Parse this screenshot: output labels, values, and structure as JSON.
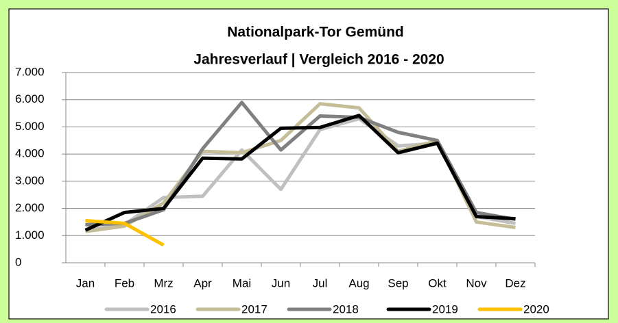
{
  "chart_data": {
    "type": "line",
    "title": [
      "Nationalpark-Tor Gemünd",
      "Jahresverlauf | Vergleich 2016 - 2020"
    ],
    "categories": [
      "Jan",
      "Feb",
      "Mrz",
      "Apr",
      "Mai",
      "Jun",
      "Jul",
      "Aug",
      "Sep",
      "Okt",
      "Nov",
      "Dez"
    ],
    "series": [
      {
        "name": "2016",
        "color": "#c0c0c0",
        "values": [
          1200,
          1400,
          2400,
          2450,
          4150,
          2700,
          4900,
          5300,
          4300,
          4400,
          1700,
          1450
        ]
      },
      {
        "name": "2017",
        "color": "#c4bd97",
        "values": [
          1150,
          1350,
          2200,
          4100,
          4050,
          4500,
          5850,
          5700,
          4100,
          4500,
          1500,
          1300
        ]
      },
      {
        "name": "2018",
        "color": "#808080",
        "values": [
          1400,
          1450,
          1950,
          4200,
          5900,
          4150,
          5400,
          5350,
          4800,
          4500,
          1850,
          1600
        ]
      },
      {
        "name": "2019",
        "color": "#000000",
        "values": [
          1200,
          1850,
          2000,
          3850,
          3820,
          4950,
          4980,
          5420,
          4050,
          4400,
          1700,
          1620
        ]
      },
      {
        "name": "2020",
        "color": "#ffc000",
        "values": [
          1550,
          1450,
          650,
          null,
          null,
          null,
          null,
          null,
          null,
          null,
          null,
          null
        ]
      }
    ],
    "ylim": [
      0,
      7000
    ],
    "yticks": [
      0,
      {
        "value": 1000,
        "label": "1.000"
      },
      {
        "value": 2000,
        "label": "2.000"
      },
      {
        "value": 3000,
        "label": "3.000"
      },
      {
        "value": 4000,
        "label": "4.000"
      },
      {
        "value": 5000,
        "label": "5.000"
      },
      {
        "value": 6000,
        "label": "6.000"
      },
      {
        "value": 7000,
        "label": "7.000"
      }
    ],
    "grid": true,
    "legend": "bottom"
  }
}
